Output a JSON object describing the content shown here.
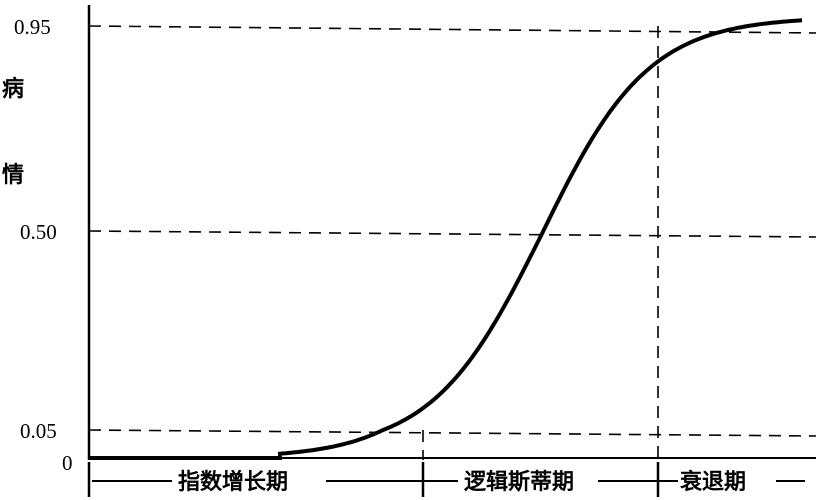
{
  "chart_data": {
    "type": "line",
    "title": "",
    "ylabel": "病情",
    "xlabel": "",
    "y_ticks": [
      "0",
      "0.05",
      "0.50",
      "0.95"
    ],
    "ylim": [
      0,
      1
    ],
    "grid": "dashed reference lines at 0.05, 0.50, 0.95",
    "reference_y": [
      0.05,
      0.5,
      0.95
    ],
    "phases": [
      {
        "label": "指数增长期",
        "y_range": [
          0,
          0.05
        ]
      },
      {
        "label": "逻辑斯蒂期",
        "y_range": [
          0.05,
          0.95
        ]
      },
      {
        "label": "衰退期",
        "y_range": [
          0.95,
          1
        ]
      }
    ],
    "series": [
      {
        "shape": "logistic S-curve",
        "start_value": 0,
        "end_value": 0.97
      }
    ],
    "line_color": "#000000"
  }
}
